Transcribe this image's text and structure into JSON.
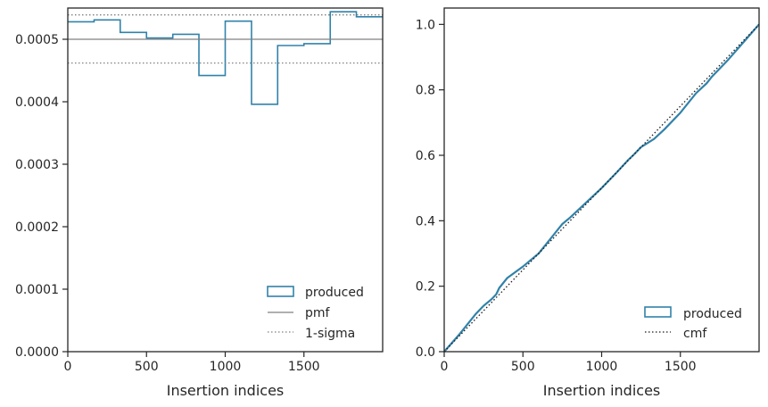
{
  "colors": {
    "produced": "#3182aa",
    "pmf": "#808080",
    "sigma": "#808080",
    "cmf": "#1a1a1a",
    "axes": "#262626"
  },
  "chart_data": [
    {
      "type": "step",
      "xlabel": "Insertion indices",
      "ylabel": "",
      "xlim": [
        0,
        2000
      ],
      "ylim": [
        0,
        0.00055
      ],
      "xticks": [
        0,
        500,
        1000,
        1500
      ],
      "xtick_labels": [
        "0",
        "500",
        "1000",
        "1500"
      ],
      "yticks": [
        0,
        0.0001,
        0.0002,
        0.0003,
        0.0004,
        0.0005
      ],
      "ytick_labels": [
        "0.0000",
        "0.0001",
        "0.0002",
        "0.0003",
        "0.0004",
        "0.0005"
      ],
      "legend_position": "lower-right",
      "series": [
        {
          "name": "produced",
          "kind": "histogram-step",
          "bin_edges": [
            0,
            167,
            333,
            500,
            667,
            833,
            1000,
            1167,
            1333,
            1500,
            1667,
            1833,
            2000
          ],
          "values": [
            0.000528,
            0.000531,
            0.000511,
            0.000502,
            0.000508,
            0.000442,
            0.000529,
            0.000396,
            0.00049,
            0.000493,
            0.000544,
            0.000536
          ]
        },
        {
          "name": "pmf",
          "kind": "hline",
          "value": 0.0005
        },
        {
          "name": "1-sigma",
          "kind": "hlines",
          "values": [
            0.000539,
            0.000462
          ]
        }
      ]
    },
    {
      "type": "line",
      "xlabel": "Insertion indices",
      "ylabel": "",
      "xlim": [
        0,
        2000
      ],
      "ylim": [
        0,
        1.05
      ],
      "xticks": [
        0,
        500,
        1000,
        1500
      ],
      "xtick_labels": [
        "0",
        "500",
        "1000",
        "1500"
      ],
      "yticks": [
        0,
        0.2,
        0.4,
        0.6,
        0.8,
        1.0
      ],
      "ytick_labels": [
        "0.0",
        "0.2",
        "0.4",
        "0.6",
        "0.8",
        "1.0"
      ],
      "legend_position": "lower-right",
      "series": [
        {
          "name": "produced",
          "x": [
            0,
            100,
            200,
            250,
            300,
            330,
            350,
            400,
            500,
            600,
            667,
            700,
            750,
            800,
            900,
            1000,
            1100,
            1167,
            1200,
            1250,
            1300,
            1333,
            1400,
            1500,
            1600,
            1667,
            1700,
            1800,
            1900,
            2000
          ],
          "y": [
            0,
            0.055,
            0.115,
            0.14,
            0.16,
            0.175,
            0.195,
            0.225,
            0.26,
            0.3,
            0.34,
            0.36,
            0.39,
            0.41,
            0.455,
            0.5,
            0.55,
            0.585,
            0.6,
            0.625,
            0.64,
            0.65,
            0.68,
            0.73,
            0.79,
            0.82,
            0.84,
            0.89,
            0.945,
            1.0
          ]
        },
        {
          "name": "cmf",
          "x": [
            0,
            2000
          ],
          "y": [
            0,
            1.0
          ]
        }
      ]
    }
  ]
}
